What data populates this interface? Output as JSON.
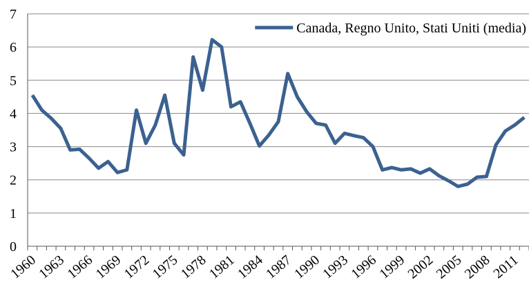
{
  "chart_data": {
    "type": "line",
    "categories": [
      "1960",
      null,
      null,
      "1963",
      null,
      null,
      "1966",
      null,
      null,
      "1969",
      null,
      null,
      "1972",
      null,
      null,
      "1975",
      null,
      null,
      "1978",
      null,
      null,
      "1981",
      null,
      null,
      "1984",
      null,
      null,
      "1987",
      null,
      null,
      "1990",
      null,
      null,
      "1993",
      null,
      null,
      "1996",
      null,
      null,
      "1999",
      null,
      null,
      "2002",
      null,
      null,
      "2005",
      null,
      null,
      "2008",
      null,
      null,
      "2011",
      null
    ],
    "series": [
      {
        "name": "Canada, Regno Unito, Stati Uniti (media)",
        "color": "#3b6190",
        "values": [
          4.55,
          4.1,
          3.85,
          3.55,
          2.9,
          2.92,
          2.65,
          2.35,
          2.55,
          2.22,
          2.3,
          4.1,
          3.1,
          3.65,
          4.55,
          3.1,
          2.75,
          5.7,
          4.7,
          6.22,
          6.0,
          4.2,
          4.35,
          3.7,
          3.02,
          3.35,
          3.75,
          5.2,
          4.5,
          4.05,
          3.7,
          3.65,
          3.1,
          3.4,
          3.33,
          3.27,
          3.0,
          2.3,
          2.37,
          2.3,
          2.33,
          2.2,
          2.33,
          2.12,
          1.97,
          1.8,
          1.87,
          2.08,
          2.1,
          3.05,
          3.47,
          3.65,
          3.88
        ]
      }
    ],
    "ylim": [
      0,
      7
    ],
    "yticks": [
      0,
      1,
      2,
      3,
      4,
      5,
      6,
      7
    ],
    "grid": true,
    "legend": "upper right"
  }
}
